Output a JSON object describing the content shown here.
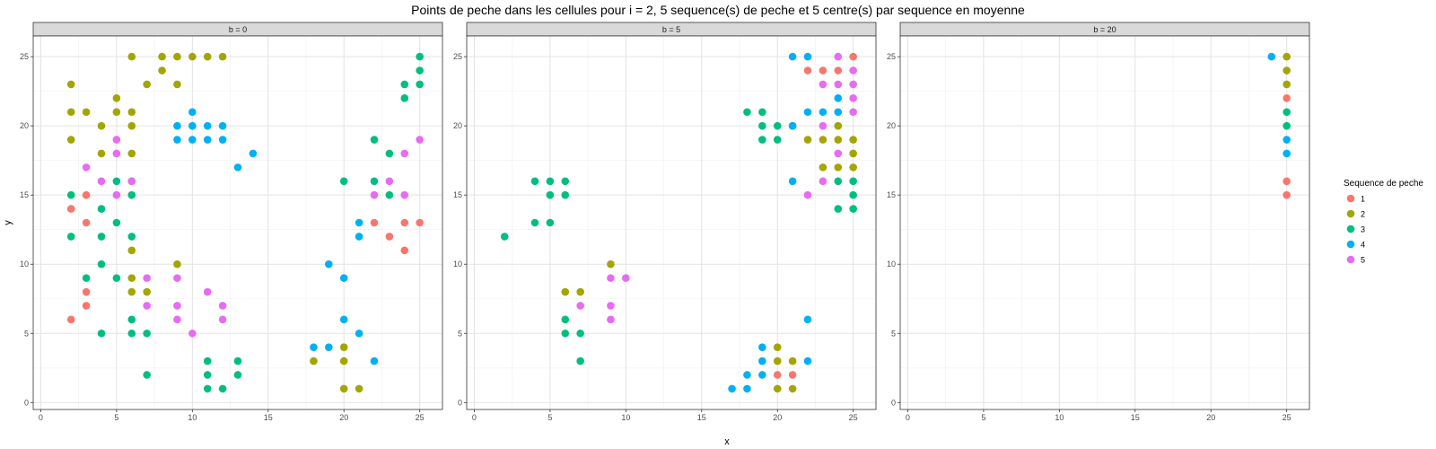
{
  "chart_data": {
    "type": "scatter",
    "title": "Points de peche dans les cellules pour i = 2, 5 sequence(s) de peche et 5 centre(s) par sequence en moyenne",
    "xlabel": "x",
    "ylabel": "y",
    "xlim": [
      -0.5,
      26.5
    ],
    "ylim": [
      -0.5,
      26.5
    ],
    "x_ticks": [
      0,
      5,
      10,
      15,
      20,
      25
    ],
    "y_ticks": [
      0,
      5,
      10,
      15,
      20,
      25
    ],
    "grid": true,
    "legend": {
      "title": "Sequence de peche",
      "position": "right",
      "entries": [
        {
          "label": "1",
          "color": "#F8766D"
        },
        {
          "label": "2",
          "color": "#A3A500"
        },
        {
          "label": "3",
          "color": "#00BF7D"
        },
        {
          "label": "4",
          "color": "#00B0F6"
        },
        {
          "label": "5",
          "color": "#E76BF3"
        }
      ]
    },
    "panels": [
      {
        "label": "b = 0",
        "series": [
          {
            "name": "1",
            "points": [
              [
                2,
                14
              ],
              [
                2,
                6
              ],
              [
                3,
                15
              ],
              [
                3,
                13
              ],
              [
                3,
                8
              ],
              [
                3,
                7
              ],
              [
                22,
                13
              ],
              [
                23,
                12
              ],
              [
                24,
                13
              ],
              [
                24,
                11
              ],
              [
                25,
                13
              ]
            ]
          },
          {
            "name": "2",
            "points": [
              [
                2,
                23
              ],
              [
                2,
                21
              ],
              [
                2,
                19
              ],
              [
                3,
                21
              ],
              [
                4,
                20
              ],
              [
                4,
                18
              ],
              [
                5,
                22
              ],
              [
                5,
                21
              ],
              [
                6,
                25
              ],
              [
                6,
                21
              ],
              [
                6,
                20
              ],
              [
                6,
                18
              ],
              [
                6,
                11
              ],
              [
                6,
                9
              ],
              [
                6,
                8
              ],
              [
                7,
                23
              ],
              [
                7,
                8
              ],
              [
                8,
                25
              ],
              [
                8,
                24
              ],
              [
                9,
                25
              ],
              [
                9,
                23
              ],
              [
                9,
                10
              ],
              [
                10,
                25
              ],
              [
                11,
                25
              ],
              [
                12,
                25
              ],
              [
                18,
                3
              ],
              [
                20,
                4
              ],
              [
                20,
                3
              ],
              [
                20,
                1
              ],
              [
                21,
                1
              ]
            ]
          },
          {
            "name": "3",
            "points": [
              [
                2,
                15
              ],
              [
                2,
                12
              ],
              [
                3,
                9
              ],
              [
                4,
                14
              ],
              [
                4,
                12
              ],
              [
                4,
                10
              ],
              [
                4,
                5
              ],
              [
                5,
                16
              ],
              [
                5,
                13
              ],
              [
                5,
                9
              ],
              [
                6,
                16
              ],
              [
                6,
                15
              ],
              [
                6,
                12
              ],
              [
                6,
                6
              ],
              [
                6,
                5
              ],
              [
                7,
                5
              ],
              [
                7,
                2
              ],
              [
                11,
                3
              ],
              [
                11,
                2
              ],
              [
                11,
                1
              ],
              [
                12,
                1
              ],
              [
                13,
                3
              ],
              [
                13,
                2
              ],
              [
                20,
                16
              ],
              [
                22,
                19
              ],
              [
                22,
                16
              ],
              [
                23,
                18
              ],
              [
                23,
                15
              ],
              [
                24,
                23
              ],
              [
                24,
                22
              ],
              [
                25,
                25
              ],
              [
                25,
                24
              ],
              [
                25,
                23
              ]
            ]
          },
          {
            "name": "4",
            "points": [
              [
                9,
                20
              ],
              [
                9,
                19
              ],
              [
                10,
                21
              ],
              [
                10,
                20
              ],
              [
                10,
                19
              ],
              [
                11,
                20
              ],
              [
                11,
                19
              ],
              [
                12,
                20
              ],
              [
                12,
                19
              ],
              [
                13,
                17
              ],
              [
                14,
                18
              ],
              [
                18,
                4
              ],
              [
                19,
                10
              ],
              [
                19,
                4
              ],
              [
                20,
                9
              ],
              [
                20,
                6
              ],
              [
                21,
                13
              ],
              [
                21,
                12
              ],
              [
                21,
                5
              ],
              [
                22,
                3
              ]
            ]
          },
          {
            "name": "5",
            "points": [
              [
                3,
                17
              ],
              [
                4,
                16
              ],
              [
                5,
                19
              ],
              [
                5,
                18
              ],
              [
                5,
                15
              ],
              [
                6,
                16
              ],
              [
                7,
                9
              ],
              [
                7,
                7
              ],
              [
                9,
                9
              ],
              [
                9,
                7
              ],
              [
                9,
                6
              ],
              [
                10,
                5
              ],
              [
                11,
                8
              ],
              [
                12,
                7
              ],
              [
                12,
                6
              ],
              [
                22,
                15
              ],
              [
                23,
                16
              ],
              [
                24,
                18
              ],
              [
                24,
                15
              ],
              [
                25,
                19
              ]
            ]
          }
        ]
      },
      {
        "label": "b = 5",
        "series": [
          {
            "name": "1",
            "points": [
              [
                20,
                2
              ],
              [
                21,
                2
              ],
              [
                22,
                24
              ],
              [
                23,
                24
              ],
              [
                24,
                24
              ],
              [
                25,
                25
              ]
            ]
          },
          {
            "name": "2",
            "points": [
              [
                6,
                8
              ],
              [
                7,
                8
              ],
              [
                9,
                10
              ],
              [
                20,
                4
              ],
              [
                20,
                3
              ],
              [
                20,
                1
              ],
              [
                21,
                3
              ],
              [
                21,
                1
              ],
              [
                22,
                19
              ],
              [
                23,
                19
              ],
              [
                23,
                17
              ],
              [
                24,
                20
              ],
              [
                24,
                19
              ],
              [
                24,
                17
              ],
              [
                25,
                19
              ],
              [
                25,
                18
              ],
              [
                25,
                17
              ]
            ]
          },
          {
            "name": "3",
            "points": [
              [
                2,
                12
              ],
              [
                4,
                16
              ],
              [
                4,
                13
              ],
              [
                5,
                16
              ],
              [
                5,
                15
              ],
              [
                5,
                13
              ],
              [
                6,
                16
              ],
              [
                6,
                15
              ],
              [
                6,
                6
              ],
              [
                6,
                5
              ],
              [
                7,
                5
              ],
              [
                7,
                3
              ],
              [
                18,
                21
              ],
              [
                19,
                21
              ],
              [
                19,
                20
              ],
              [
                19,
                19
              ],
              [
                20,
                20
              ],
              [
                20,
                19
              ],
              [
                21,
                20
              ],
              [
                24,
                16
              ],
              [
                24,
                14
              ],
              [
                25,
                16
              ],
              [
                25,
                15
              ],
              [
                25,
                14
              ]
            ]
          },
          {
            "name": "4",
            "points": [
              [
                17,
                1
              ],
              [
                18,
                2
              ],
              [
                18,
                1
              ],
              [
                19,
                4
              ],
              [
                19,
                3
              ],
              [
                19,
                2
              ],
              [
                21,
                25
              ],
              [
                21,
                20
              ],
              [
                21,
                16
              ],
              [
                22,
                25
              ],
              [
                22,
                21
              ],
              [
                22,
                6
              ],
              [
                22,
                3
              ],
              [
                23,
                21
              ],
              [
                24,
                22
              ],
              [
                24,
                21
              ]
            ]
          },
          {
            "name": "5",
            "points": [
              [
                7,
                7
              ],
              [
                9,
                9
              ],
              [
                9,
                7
              ],
              [
                9,
                6
              ],
              [
                10,
                9
              ],
              [
                22,
                15
              ],
              [
                23,
                23
              ],
              [
                23,
                20
              ],
              [
                23,
                16
              ],
              [
                24,
                25
              ],
              [
                24,
                23
              ],
              [
                24,
                18
              ],
              [
                25,
                24
              ],
              [
                25,
                23
              ],
              [
                25,
                22
              ],
              [
                25,
                21
              ]
            ]
          }
        ]
      },
      {
        "label": "b = 20",
        "series": [
          {
            "name": "1",
            "points": [
              [
                25,
                22
              ],
              [
                25,
                16
              ],
              [
                25,
                15
              ]
            ]
          },
          {
            "name": "2",
            "points": [
              [
                25,
                25
              ],
              [
                25,
                24
              ],
              [
                25,
                23
              ]
            ]
          },
          {
            "name": "3",
            "points": [
              [
                25,
                21
              ],
              [
                25,
                20
              ]
            ]
          },
          {
            "name": "4",
            "points": [
              [
                24,
                25
              ],
              [
                25,
                19
              ],
              [
                25,
                18
              ]
            ]
          },
          {
            "name": "5",
            "points": []
          }
        ]
      }
    ]
  }
}
